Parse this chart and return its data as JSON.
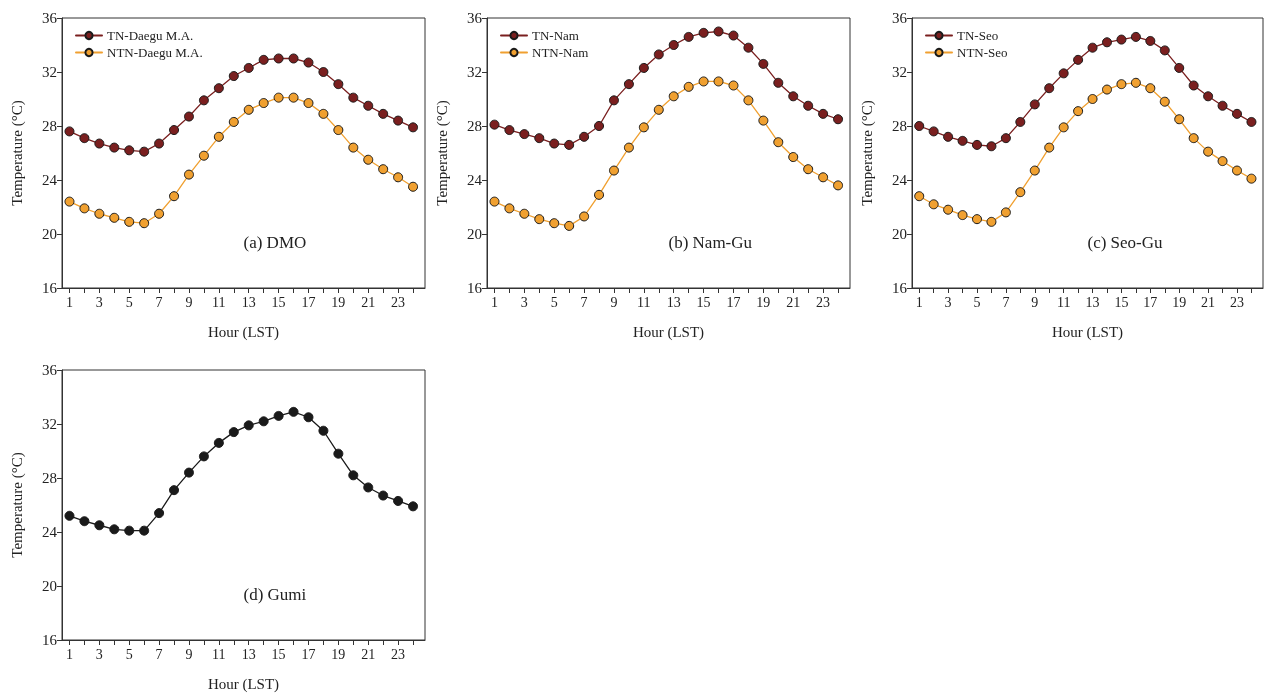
{
  "chart_data": [
    {
      "type": "line",
      "xlabel": "Hour (LST)",
      "ylabel": "Temperature (°C)",
      "annotations": [
        "(a) DMO"
      ],
      "marker": "circle",
      "legend": "top left",
      "grid": false,
      "x": [
        1,
        2,
        3,
        4,
        5,
        6,
        7,
        8,
        9,
        10,
        11,
        12,
        13,
        14,
        15,
        16,
        17,
        18,
        19,
        20,
        21,
        22,
        23,
        24
      ],
      "xlim": [
        0.5,
        24.8
      ],
      "xticks": [
        1,
        {
          "value": 2,
          "label": null
        },
        3,
        {
          "value": 4,
          "label": null
        },
        5,
        {
          "value": 6,
          "label": null
        },
        7,
        {
          "value": 8,
          "label": null
        },
        9,
        {
          "value": 10,
          "label": null
        },
        11,
        {
          "value": 12,
          "label": null
        },
        13,
        {
          "value": 14,
          "label": null
        },
        15,
        {
          "value": 16,
          "label": null
        },
        17,
        {
          "value": 18,
          "label": null
        },
        19,
        {
          "value": 20,
          "label": null
        },
        21,
        {
          "value": 22,
          "label": null
        },
        23,
        {
          "value": 24,
          "label": null
        }
      ],
      "ylim": [
        16,
        36
      ],
      "yticks": [
        16,
        20,
        24,
        28,
        32,
        36
      ],
      "series": [
        {
          "name": "TN-Daegu M.A.",
          "color": "#7a1f1f",
          "values": [
            27.6,
            27.1,
            26.7,
            26.4,
            26.2,
            26.1,
            26.7,
            27.7,
            28.7,
            29.9,
            30.8,
            31.7,
            32.3,
            32.9,
            33.0,
            33.0,
            32.7,
            32.0,
            31.1,
            30.1,
            29.5,
            28.9,
            28.4,
            27.9
          ]
        },
        {
          "name": "NTN-Daegu M.A.",
          "color": "#f0a030",
          "values": [
            22.4,
            21.9,
            21.5,
            21.2,
            20.9,
            20.8,
            21.5,
            22.8,
            24.4,
            25.8,
            27.2,
            28.3,
            29.2,
            29.7,
            30.1,
            30.1,
            29.7,
            28.9,
            27.7,
            26.4,
            25.5,
            24.8,
            24.2,
            23.5
          ]
        }
      ]
    },
    {
      "type": "line",
      "xlabel": "Hour (LST)",
      "ylabel": "Temperature (°C)",
      "annotations": [
        "(b) Nam-Gu"
      ],
      "marker": "circle",
      "legend": "top left",
      "grid": false,
      "x": [
        1,
        2,
        3,
        4,
        5,
        6,
        7,
        8,
        9,
        10,
        11,
        12,
        13,
        14,
        15,
        16,
        17,
        18,
        19,
        20,
        21,
        22,
        23,
        24
      ],
      "xlim": [
        0.5,
        24.8
      ],
      "xticks": [
        1,
        {
          "value": 2,
          "label": null
        },
        3,
        {
          "value": 4,
          "label": null
        },
        5,
        {
          "value": 6,
          "label": null
        },
        7,
        {
          "value": 8,
          "label": null
        },
        9,
        {
          "value": 10,
          "label": null
        },
        11,
        {
          "value": 12,
          "label": null
        },
        13,
        {
          "value": 14,
          "label": null
        },
        15,
        {
          "value": 16,
          "label": null
        },
        17,
        {
          "value": 18,
          "label": null
        },
        19,
        {
          "value": 20,
          "label": null
        },
        21,
        {
          "value": 22,
          "label": null
        },
        23,
        {
          "value": 24,
          "label": null
        }
      ],
      "ylim": [
        16,
        36
      ],
      "yticks": [
        16,
        20,
        24,
        28,
        32,
        36
      ],
      "series": [
        {
          "name": "TN-Nam",
          "color": "#7a1f1f",
          "values": [
            28.1,
            27.7,
            27.4,
            27.1,
            26.7,
            26.6,
            27.2,
            28.0,
            29.9,
            31.1,
            32.3,
            33.3,
            34.0,
            34.6,
            34.9,
            35.0,
            34.7,
            33.8,
            32.6,
            31.2,
            30.2,
            29.5,
            28.9,
            28.5
          ]
        },
        {
          "name": "NTN-Nam",
          "color": "#f0a030",
          "values": [
            22.4,
            21.9,
            21.5,
            21.1,
            20.8,
            20.6,
            21.3,
            22.9,
            24.7,
            26.4,
            27.9,
            29.2,
            30.2,
            30.9,
            31.3,
            31.3,
            31.0,
            29.9,
            28.4,
            26.8,
            25.7,
            24.8,
            24.2,
            23.6
          ]
        }
      ]
    },
    {
      "type": "line",
      "xlabel": "Hour (LST)",
      "ylabel": "Temperature (°C)",
      "annotations": [
        "(c) Seo-Gu"
      ],
      "marker": "circle",
      "legend": "top left",
      "grid": false,
      "x": [
        1,
        2,
        3,
        4,
        5,
        6,
        7,
        8,
        9,
        10,
        11,
        12,
        13,
        14,
        15,
        16,
        17,
        18,
        19,
        20,
        21,
        22,
        23,
        24
      ],
      "xlim": [
        0.5,
        24.8
      ],
      "xticks": [
        1,
        {
          "value": 2,
          "label": null
        },
        3,
        {
          "value": 4,
          "label": null
        },
        5,
        {
          "value": 6,
          "label": null
        },
        7,
        {
          "value": 8,
          "label": null
        },
        9,
        {
          "value": 10,
          "label": null
        },
        11,
        {
          "value": 12,
          "label": null
        },
        13,
        {
          "value": 14,
          "label": null
        },
        15,
        {
          "value": 16,
          "label": null
        },
        17,
        {
          "value": 18,
          "label": null
        },
        19,
        {
          "value": 20,
          "label": null
        },
        21,
        {
          "value": 22,
          "label": null
        },
        23,
        {
          "value": 24,
          "label": null
        }
      ],
      "ylim": [
        16,
        36
      ],
      "yticks": [
        16,
        20,
        24,
        28,
        32,
        36
      ],
      "series": [
        {
          "name": "TN-Seo",
          "color": "#7a1f1f",
          "values": [
            28.0,
            27.6,
            27.2,
            26.9,
            26.6,
            26.5,
            27.1,
            28.3,
            29.6,
            30.8,
            31.9,
            32.9,
            33.8,
            34.2,
            34.4,
            34.6,
            34.3,
            33.6,
            32.3,
            31.0,
            30.2,
            29.5,
            28.9,
            28.3
          ]
        },
        {
          "name": "NTN-Seo",
          "color": "#f0a030",
          "values": [
            22.8,
            22.2,
            21.8,
            21.4,
            21.1,
            20.9,
            21.6,
            23.1,
            24.7,
            26.4,
            27.9,
            29.1,
            30.0,
            30.7,
            31.1,
            31.2,
            30.8,
            29.8,
            28.5,
            27.1,
            26.1,
            25.4,
            24.7,
            24.1
          ]
        }
      ]
    },
    {
      "type": "line",
      "xlabel": "Hour (LST)",
      "ylabel": "Temperature (°C)",
      "annotations": [
        "(d) Gumi"
      ],
      "marker": "circle",
      "legend": false,
      "grid": false,
      "x": [
        1,
        2,
        3,
        4,
        5,
        6,
        7,
        8,
        9,
        10,
        11,
        12,
        13,
        14,
        15,
        16,
        17,
        18,
        19,
        20,
        21,
        22,
        23,
        24
      ],
      "xlim": [
        0.5,
        24.8
      ],
      "xticks": [
        1,
        {
          "value": 2,
          "label": null
        },
        3,
        {
          "value": 4,
          "label": null
        },
        5,
        {
          "value": 6,
          "label": null
        },
        7,
        {
          "value": 8,
          "label": null
        },
        9,
        {
          "value": 10,
          "label": null
        },
        11,
        {
          "value": 12,
          "label": null
        },
        13,
        {
          "value": 14,
          "label": null
        },
        15,
        {
          "value": 16,
          "label": null
        },
        17,
        {
          "value": 18,
          "label": null
        },
        19,
        {
          "value": 20,
          "label": null
        },
        21,
        {
          "value": 22,
          "label": null
        },
        23,
        {
          "value": 24,
          "label": null
        }
      ],
      "ylim": [
        16,
        36
      ],
      "yticks": [
        16,
        20,
        24,
        28,
        32,
        36
      ],
      "series": [
        {
          "color": "#1a1a1a",
          "values": [
            25.2,
            24.8,
            24.5,
            24.2,
            24.1,
            24.1,
            25.4,
            27.1,
            28.4,
            29.6,
            30.6,
            31.4,
            31.9,
            32.2,
            32.6,
            32.9,
            32.5,
            31.5,
            29.8,
            28.2,
            27.3,
            26.7,
            26.3,
            25.9
          ]
        }
      ]
    }
  ]
}
